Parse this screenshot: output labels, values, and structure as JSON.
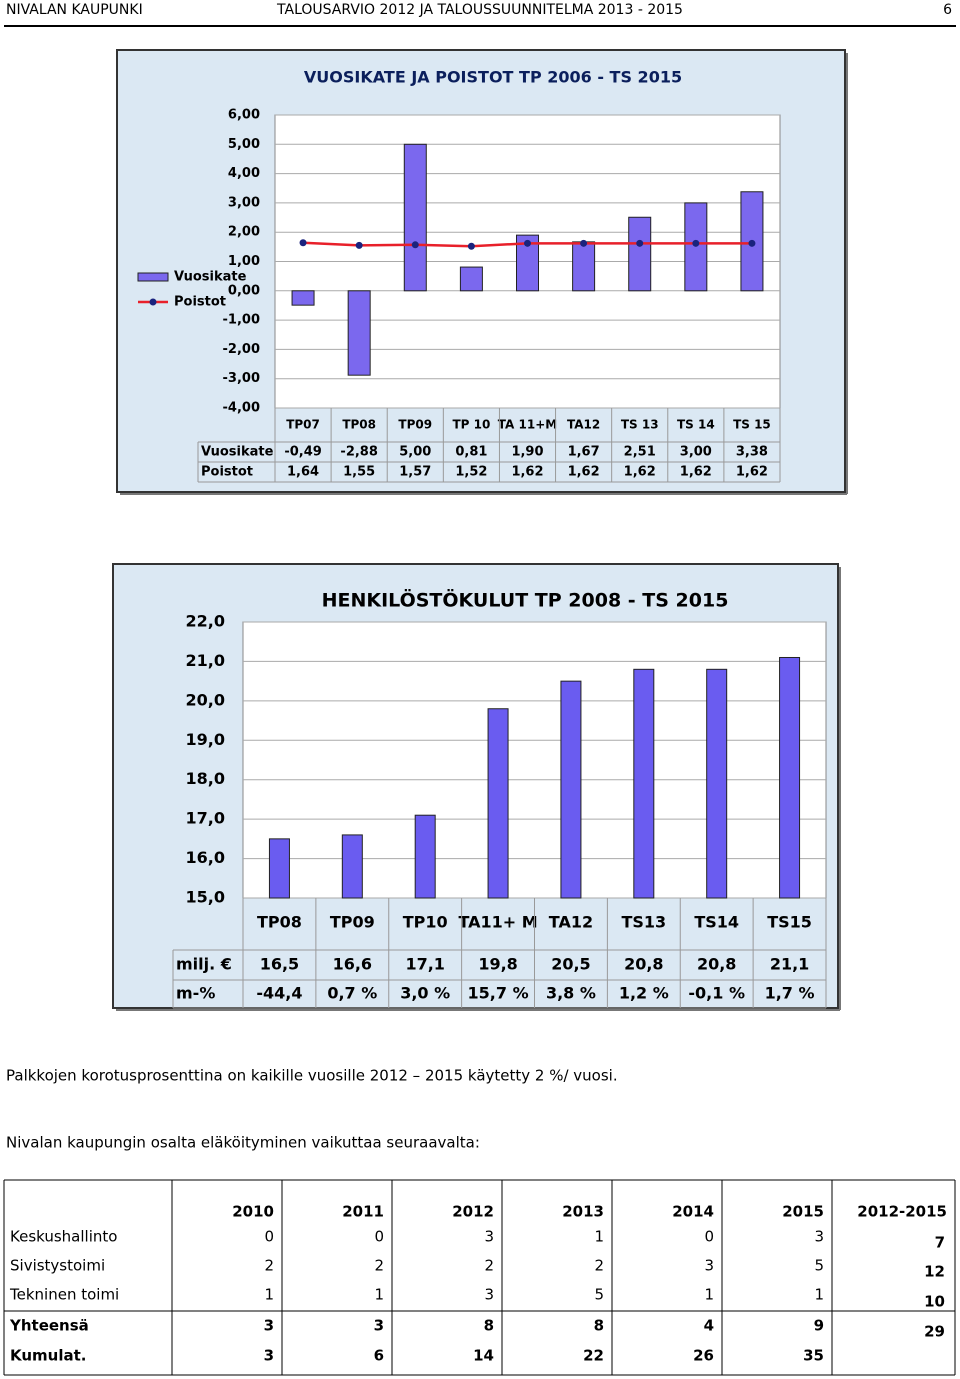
{
  "header": {
    "left": "NIVALAN KAUPUNKI",
    "center": "TALOUSARVIO 2012 JA TALOUSSUUNNITELMA 2013 - 2015",
    "page": "6"
  },
  "chart_data": [
    {
      "type": "combo",
      "title": "VUOSIKATE JA POISTOT TP 2006 - TS 2015",
      "categories": [
        "TP07",
        "TP08",
        "TP09",
        "TP 10",
        "TA 11+M",
        "TA12",
        "TS 13",
        "TS 14",
        "TS 15"
      ],
      "series": [
        {
          "name": "Vuosikate",
          "type": "bar",
          "color": "#7b68ee",
          "values": [
            -0.49,
            -2.88,
            5.0,
            0.81,
            1.9,
            1.67,
            2.51,
            3.0,
            3.38
          ],
          "value_labels": [
            "-0,49",
            "-2,88",
            "5,00",
            "0,81",
            "1,90",
            "1,67",
            "2,51",
            "3,00",
            "3,38"
          ]
        },
        {
          "name": "Poistot",
          "type": "line",
          "color": "#e8202a",
          "marker_color": "#1a237e",
          "values": [
            1.64,
            1.55,
            1.57,
            1.52,
            1.62,
            1.62,
            1.62,
            1.62,
            1.62
          ],
          "value_labels": [
            "1,64",
            "1,55",
            "1,57",
            "1,52",
            "1,62",
            "1,62",
            "1,62",
            "1,62",
            "1,62"
          ]
        }
      ],
      "ylim": [
        -4,
        6
      ],
      "yticks": [
        {
          "value": -4,
          "label": "-4,00"
        },
        {
          "value": -3,
          "label": "-3,00"
        },
        {
          "value": -2,
          "label": "-2,00"
        },
        {
          "value": -1,
          "label": "-1,00"
        },
        {
          "value": 0,
          "label": "0,00"
        },
        {
          "value": 1,
          "label": "1,00"
        },
        {
          "value": 2,
          "label": "2,00"
        },
        {
          "value": 3,
          "label": "3,00"
        },
        {
          "value": 4,
          "label": "4,00"
        },
        {
          "value": 5,
          "label": "5,00"
        },
        {
          "value": 6,
          "label": "6,00"
        }
      ],
      "grid": true,
      "legend": "left"
    },
    {
      "type": "bar",
      "title": "HENKILÖSTÖKULUT TP 2008 - TS 2015",
      "categories": [
        "TP08",
        "TP09",
        "TP10",
        "TA11+ M",
        "TA12",
        "TS13",
        "TS14",
        "TS15"
      ],
      "values": [
        16.5,
        16.6,
        17.1,
        19.8,
        20.5,
        20.8,
        20.8,
        21.1
      ],
      "value_labels": [
        "16,5",
        "16,6",
        "17,1",
        "19,8",
        "20,5",
        "20,8",
        "20,8",
        "21,1"
      ],
      "color": "#6a5cf0",
      "ylim": [
        15,
        22
      ],
      "yticks": [
        {
          "value": 15,
          "label": "15,0"
        },
        {
          "value": 16,
          "label": "16,0"
        },
        {
          "value": 17,
          "label": "17,0"
        },
        {
          "value": 18,
          "label": "18,0"
        },
        {
          "value": 19,
          "label": "19,0"
        },
        {
          "value": 20,
          "label": "20,0"
        },
        {
          "value": 21,
          "label": "21,0"
        },
        {
          "value": 22,
          "label": "22,0"
        }
      ],
      "grid": true,
      "value_row_label": "milj. €",
      "change_row_label": "m-%",
      "change_labels": [
        "-44,4",
        "0,7 %",
        "3,0 %",
        "15,7 %",
        "3,8 %",
        "1,2 %",
        "-0,1 %",
        "1,7 %"
      ]
    }
  ],
  "paragraphs": [
    "Palkkojen korotusprosenttina on kaikille vuosille 2012 – 2015 käytetty 2 %/ vuosi.",
    "Nivalan kaupungin osalta eläköityminen vaikuttaa seuraavalta:"
  ],
  "table": {
    "columns": [
      "2010",
      "2011",
      "2012",
      "2013",
      "2014",
      "2015",
      "2012-2015"
    ],
    "rows": [
      [
        "Keskushallinto",
        0,
        0,
        3,
        1,
        0,
        3
      ],
      [
        "Sivistystoimi",
        2,
        2,
        2,
        2,
        3,
        5
      ],
      [
        "Tekninen toimi",
        1,
        1,
        3,
        5,
        1,
        1
      ],
      [
        "Yhteensä",
        3,
        3,
        8,
        8,
        4,
        9
      ],
      [
        "Kumulat.",
        3,
        6,
        14,
        22,
        26,
        35
      ]
    ],
    "period_totals": [
      7,
      12,
      10,
      29
    ]
  }
}
